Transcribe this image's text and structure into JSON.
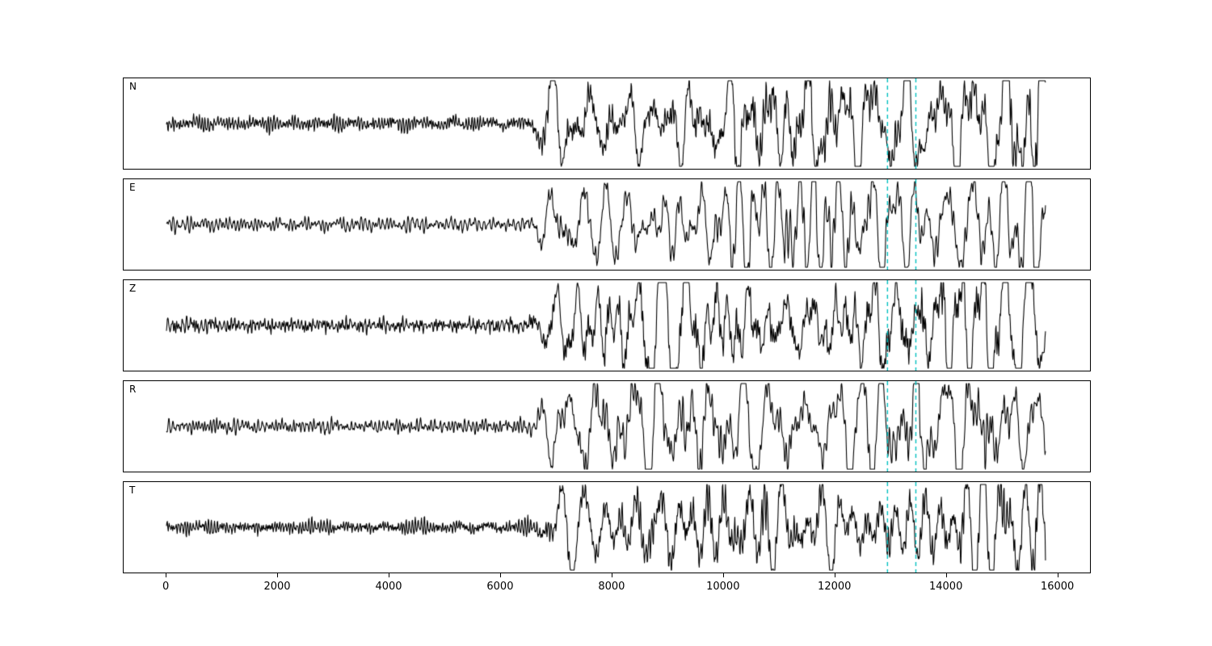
{
  "figure": {
    "background": "#ffffff",
    "panel_border_color": "#000000",
    "trace_color": "#000000"
  },
  "chart_data": {
    "type": "line",
    "title": "",
    "xlabel": "",
    "ylabel": "",
    "grid": false,
    "legend": false,
    "x_range": [
      -770,
      16600
    ],
    "x_ticks": [
      0,
      2000,
      4000,
      6000,
      8000,
      10000,
      12000,
      14000,
      16000
    ],
    "channels": [
      {
        "label": "N",
        "seed": 101
      },
      {
        "label": "E",
        "seed": 202
      },
      {
        "label": "Z",
        "seed": 303
      },
      {
        "label": "R",
        "seed": 404
      },
      {
        "label": "T",
        "seed": 505
      }
    ],
    "trace": {
      "x_start": 0,
      "x_end": 15800,
      "noise_segment_end": 6450,
      "quiet_amplitude": 0.1,
      "loud_amplitude": 1.0
    },
    "pick_lines": {
      "x": [
        12960,
        13470
      ],
      "color": "#00bfbf",
      "style": "dashed"
    }
  }
}
